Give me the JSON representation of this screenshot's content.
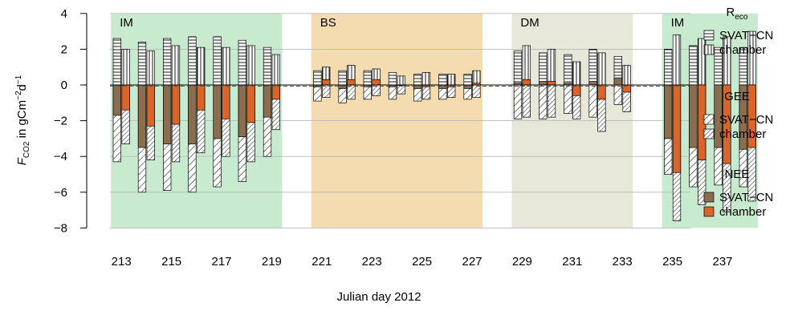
{
  "chart_data": {
    "type": "bar",
    "title": "",
    "xlabel": "Julian day 2012",
    "ylabel": "F",
    "ylabel_sub": "CO2",
    "ylabel_unit_main": " in gCm",
    "ylabel_unit_exp1": "−2",
    "ylabel_unit_mid": "d",
    "ylabel_unit_exp2": "−1",
    "ylim": [
      -8,
      4
    ],
    "yticks": [
      -8,
      -6,
      -4,
      -2,
      0,
      2,
      4
    ],
    "ytick_labels": [
      "−8",
      "−6",
      "−4",
      "−2",
      "0",
      "2",
      "4"
    ],
    "xtick_labels": [
      "213",
      "215",
      "217",
      "219",
      "221",
      "223",
      "225",
      "227",
      "229",
      "231",
      "233",
      "235",
      "237"
    ],
    "grid": "horizontal",
    "colors": {
      "IM": "#c8ebcf",
      "BS": "#f5dcb0",
      "DM": "#e8e8da",
      "nee_svat": "#8b6e50",
      "nee_chamber": "#d9652a"
    },
    "periods": [
      {
        "label": "IM",
        "days": [
          213,
          214,
          215,
          216,
          217,
          218,
          219
        ],
        "color_key": "IM"
      },
      {
        "label": "BS",
        "days": [
          221,
          222,
          223,
          224,
          225,
          226,
          227
        ],
        "color_key": "BS"
      },
      {
        "label": "DM",
        "days": [
          229,
          230,
          231,
          232,
          233
        ],
        "color_key": "DM"
      },
      {
        "label": "IM",
        "days": [
          235,
          236,
          237,
          238
        ],
        "color_key": "IM"
      }
    ],
    "days": [
      213,
      214,
      215,
      216,
      217,
      218,
      219,
      221,
      222,
      223,
      224,
      225,
      226,
      227,
      229,
      230,
      231,
      232,
      233,
      235,
      236,
      237,
      238
    ],
    "series": [
      {
        "name": "Reco SVAT−CN",
        "values": [
          2.6,
          2.4,
          2.6,
          2.7,
          2.7,
          2.5,
          2.1,
          0.8,
          0.8,
          0.8,
          0.7,
          0.6,
          0.6,
          0.6,
          1.9,
          1.8,
          1.7,
          2.0,
          1.6,
          2.0,
          2.2,
          2.1,
          2.1
        ]
      },
      {
        "name": "Reco chamber",
        "values": [
          2.0,
          1.9,
          2.2,
          2.1,
          2.1,
          2.2,
          1.7,
          1.0,
          1.1,
          0.9,
          0.5,
          0.7,
          0.6,
          0.8,
          2.2,
          2.0,
          1.3,
          1.8,
          1.1,
          2.8,
          2.6,
          2.7,
          3.0
        ]
      },
      {
        "name": "GEE SVAT−CN",
        "values": [
          -4.3,
          -6.0,
          -5.9,
          -6.0,
          -5.7,
          -5.4,
          -4.0,
          -0.9,
          -1.0,
          -0.8,
          -0.8,
          -0.9,
          -0.8,
          -0.8,
          -1.9,
          -1.9,
          -1.6,
          -1.8,
          -1.1,
          -5.0,
          -5.7,
          -5.6,
          -5.7
        ]
      },
      {
        "name": "GEE chamber",
        "values": [
          -3.3,
          -4.2,
          -4.3,
          -3.8,
          -4.0,
          -4.3,
          -2.5,
          -0.7,
          -0.8,
          -0.6,
          -0.5,
          -0.8,
          -0.7,
          -0.7,
          -1.8,
          -1.8,
          -1.9,
          -2.6,
          -1.5,
          -7.6,
          -6.7,
          -7.1,
          -6.5
        ]
      },
      {
        "name": "NEE SVAT−CN",
        "values": [
          -1.7,
          -3.5,
          -3.3,
          -3.3,
          -3.0,
          -2.9,
          -1.8,
          -0.1,
          -0.2,
          -0.1,
          -0.1,
          -0.2,
          -0.2,
          -0.2,
          0.1,
          0.2,
          0.1,
          0.2,
          0.4,
          -3.0,
          -3.5,
          -3.5,
          -3.6
        ]
      },
      {
        "name": "NEE chamber",
        "values": [
          -1.4,
          -2.3,
          -2.2,
          -1.4,
          -1.9,
          -2.1,
          -0.8,
          0.3,
          0.3,
          0.3,
          0.0,
          -0.1,
          -0.1,
          0.1,
          0.3,
          0.2,
          -0.6,
          -0.8,
          -0.4,
          -4.9,
          -4.2,
          -4.4,
          -3.5
        ]
      }
    ],
    "legend": {
      "placement": "right",
      "groups": [
        {
          "title": "R",
          "title_sub": "eco",
          "entries": [
            {
              "label": "SVAT−CN",
              "pattern": "horizontal"
            },
            {
              "label": "chamber",
              "pattern": "vertical"
            }
          ]
        },
        {
          "title": "GEE",
          "entries": [
            {
              "label": "SVAT−CN",
              "pattern": "diag-sparse"
            },
            {
              "label": "chamber",
              "pattern": "diag-dense"
            }
          ]
        },
        {
          "title": "NEE",
          "entries": [
            {
              "label": "SVAT−CN",
              "pattern": "nee_svat"
            },
            {
              "label": "chamber",
              "pattern": "nee_chamber"
            }
          ]
        }
      ]
    }
  }
}
